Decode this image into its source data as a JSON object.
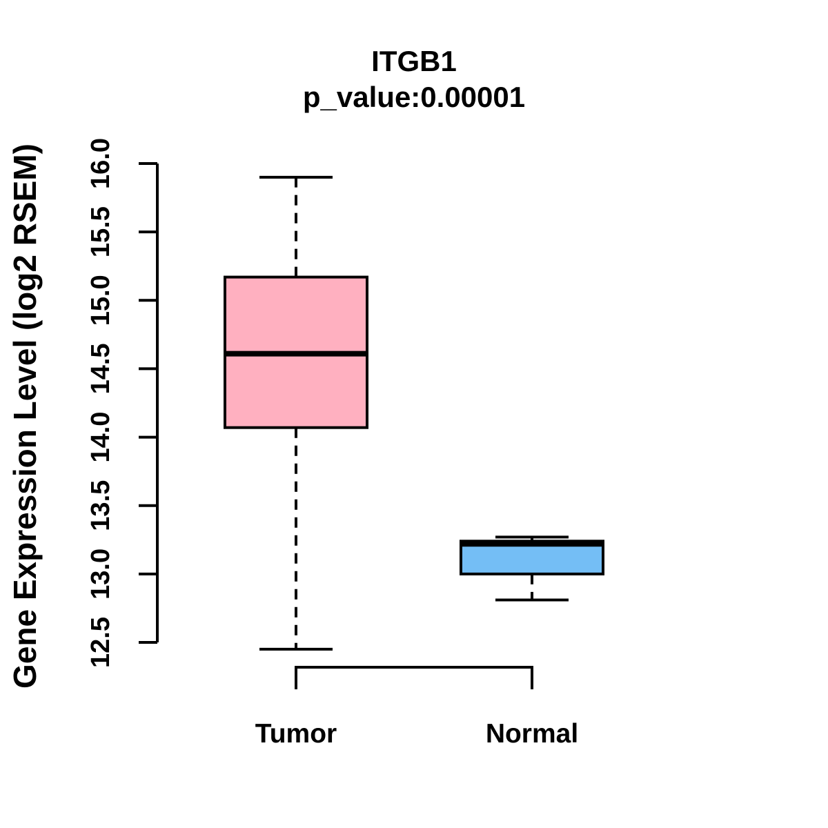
{
  "figure": {
    "title": "ITGB1",
    "subtitle": "p_value:0.00001",
    "y_axis_label": "Gene Expression Level (log2 RSEM)"
  },
  "chart_data": {
    "type": "boxplot",
    "title": "ITGB1",
    "subtitle": "p_value:0.00001",
    "ylabel": "Gene Expression Level (log2 RSEM)",
    "xlabel": "",
    "categories": [
      "Tumor",
      "Normal"
    ],
    "series": [
      {
        "name": "Tumor",
        "whisker_low": 12.45,
        "q1": 14.07,
        "median": 14.61,
        "q3": 15.17,
        "whisker_high": 15.9,
        "fill_color": "#FFB0C0"
      },
      {
        "name": "Normal",
        "whisker_low": 12.81,
        "q1": 13.0,
        "median": 13.22,
        "q3": 13.24,
        "whisker_high": 13.27,
        "fill_color": "#74BEF5"
      }
    ],
    "yticks": [
      "12.5",
      "13.0",
      "13.5",
      "14.0",
      "14.5",
      "15.0",
      "15.5",
      "16.0"
    ],
    "ylim": [
      12.37,
      16.13
    ],
    "grid": false,
    "legend": null,
    "stroke_color": "#000000",
    "background_color": "#FFFFFF"
  }
}
